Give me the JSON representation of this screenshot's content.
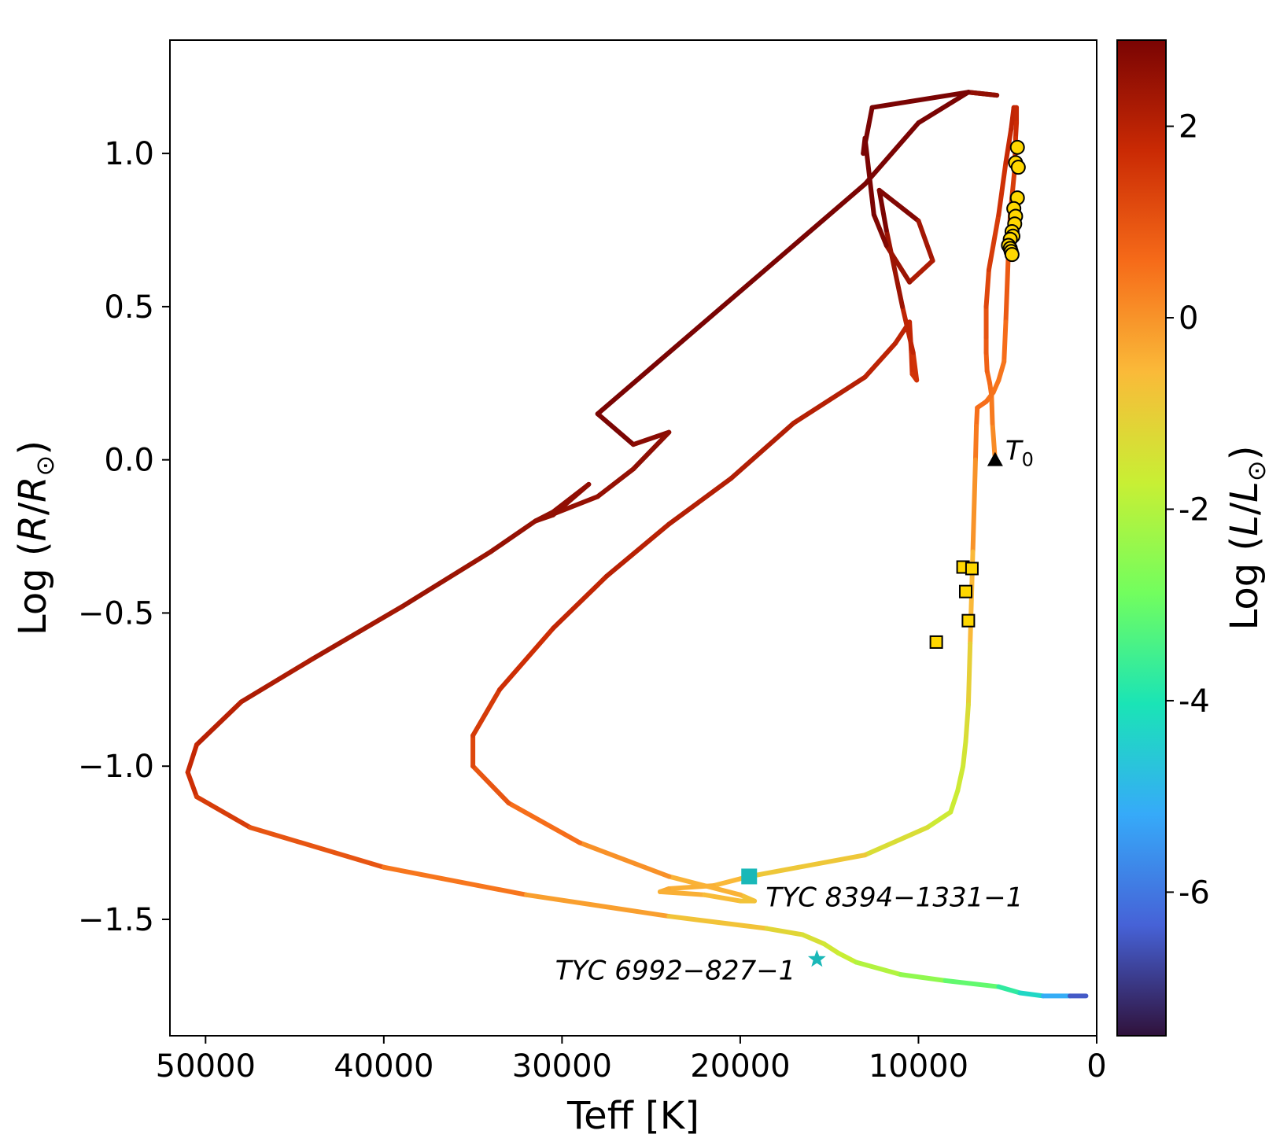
{
  "chart_data": {
    "type": "scatter",
    "xlabel": "Teff [K]",
    "ylabel": "Log (R/R⊙)",
    "colorbar_label": "Log (L/L⊙)",
    "xlim": [
      52000,
      0
    ],
    "ylim": [
      -1.88,
      1.37
    ],
    "clim": [
      -7.5,
      2.9
    ],
    "x_ticks": [
      50000,
      40000,
      30000,
      20000,
      10000,
      0
    ],
    "x_tick_labels": [
      "50000",
      "40000",
      "30000",
      "20000",
      "10000",
      "0"
    ],
    "y_ticks": [
      1.0,
      0.5,
      0.0,
      -0.5,
      -1.0,
      -1.5
    ],
    "y_tick_labels": [
      "1.0",
      "0.5",
      "0.0",
      "−0.5",
      "−1.0",
      "−1.5"
    ],
    "colorbar_ticks": [
      2,
      0,
      -2,
      -4,
      -6
    ],
    "colorbar_tick_labels": [
      "2",
      "0",
      "-2",
      "-4",
      "-6"
    ],
    "track": [
      [
        5700,
        0.0
      ],
      [
        5850,
        0.12
      ],
      [
        5900,
        0.21
      ],
      [
        6000,
        0.25
      ],
      [
        6150,
        0.29
      ],
      [
        6200,
        0.35
      ],
      [
        6200,
        0.4
      ],
      [
        6200,
        0.5
      ],
      [
        6050,
        0.62
      ],
      [
        5500,
        0.8
      ],
      [
        5100,
        0.97
      ],
      [
        4800,
        1.08
      ],
      [
        4650,
        1.15
      ],
      [
        4500,
        1.15
      ],
      [
        4500,
        1.1
      ],
      [
        4550,
        1.05
      ],
      [
        4600,
        0.95
      ],
      [
        4850,
        0.8
      ],
      [
        4950,
        0.68
      ],
      [
        5100,
        0.45
      ],
      [
        5200,
        0.32
      ],
      [
        5500,
        0.26
      ],
      [
        5800,
        0.22
      ],
      [
        6200,
        0.19
      ],
      [
        6700,
        0.17
      ],
      [
        6750,
        0.11
      ],
      [
        6800,
        0.0
      ],
      [
        6950,
        -0.3
      ],
      [
        7100,
        -0.6
      ],
      [
        7200,
        -0.8
      ],
      [
        7350,
        -0.92
      ],
      [
        7500,
        -1.0
      ],
      [
        7800,
        -1.08
      ],
      [
        8200,
        -1.15
      ],
      [
        9500,
        -1.2
      ],
      [
        13000,
        -1.29
      ],
      [
        19500,
        -1.36
      ],
      [
        21500,
        -1.39
      ],
      [
        24000,
        -1.4
      ],
      [
        24500,
        -1.41
      ],
      [
        22000,
        -1.42
      ],
      [
        20000,
        -1.44
      ],
      [
        19200,
        -1.44
      ],
      [
        20000,
        -1.42
      ],
      [
        24000,
        -1.36
      ],
      [
        29000,
        -1.25
      ],
      [
        33000,
        -1.12
      ],
      [
        35000,
        -1.0
      ],
      [
        35000,
        -0.9
      ],
      [
        33500,
        -0.75
      ],
      [
        30500,
        -0.55
      ],
      [
        27500,
        -0.38
      ],
      [
        24000,
        -0.21
      ],
      [
        20500,
        -0.06
      ],
      [
        17000,
        0.12
      ],
      [
        13000,
        0.27
      ],
      [
        11300,
        0.38
      ],
      [
        10500,
        0.45
      ],
      [
        10400,
        0.35
      ],
      [
        10350,
        0.28
      ],
      [
        10100,
        0.26
      ],
      [
        10300,
        0.35
      ],
      [
        10900,
        0.5
      ],
      [
        11800,
        0.75
      ],
      [
        12200,
        0.88
      ],
      [
        10000,
        0.78
      ],
      [
        9200,
        0.65
      ],
      [
        10500,
        0.58
      ],
      [
        11800,
        0.7
      ],
      [
        12500,
        0.8
      ],
      [
        13000,
        1.05
      ],
      [
        13100,
        1.0
      ],
      [
        12600,
        1.15
      ],
      [
        7200,
        1.2
      ],
      [
        5600,
        1.19
      ],
      [
        7200,
        1.2
      ],
      [
        10000,
        1.1
      ],
      [
        13000,
        0.9
      ],
      [
        17000,
        0.7
      ],
      [
        21000,
        0.5
      ],
      [
        25000,
        0.3
      ],
      [
        28000,
        0.15
      ],
      [
        26000,
        0.05
      ],
      [
        24000,
        0.09
      ],
      [
        26000,
        -0.03
      ],
      [
        28000,
        -0.12
      ],
      [
        31500,
        -0.2
      ],
      [
        30500,
        -0.18
      ],
      [
        28500,
        -0.08
      ],
      [
        30500,
        -0.17
      ],
      [
        31500,
        -0.2
      ],
      [
        34000,
        -0.3
      ],
      [
        39000,
        -0.48
      ],
      [
        44000,
        -0.65
      ],
      [
        48000,
        -0.79
      ],
      [
        50500,
        -0.93
      ],
      [
        51000,
        -1.02
      ],
      [
        50500,
        -1.1
      ],
      [
        47500,
        -1.2
      ],
      [
        40000,
        -1.33
      ],
      [
        32000,
        -1.42
      ],
      [
        24000,
        -1.49
      ],
      [
        18500,
        -1.53
      ],
      [
        16500,
        -1.55
      ],
      [
        15300,
        -1.58
      ],
      [
        14500,
        -1.61
      ],
      [
        13500,
        -1.64
      ],
      [
        11000,
        -1.68
      ],
      [
        8500,
        -1.7
      ],
      [
        5500,
        -1.72
      ],
      [
        4300,
        -1.74
      ],
      [
        3000,
        -1.75
      ],
      [
        1500,
        -1.75
      ],
      [
        600,
        -1.75
      ]
    ],
    "circles": [
      [
        4450,
        1.02
      ],
      [
        4550,
        0.97
      ],
      [
        4400,
        0.955
      ],
      [
        4450,
        0.855
      ],
      [
        4650,
        0.82
      ],
      [
        4550,
        0.795
      ],
      [
        4600,
        0.77
      ],
      [
        4750,
        0.745
      ],
      [
        4700,
        0.73
      ],
      [
        4850,
        0.72
      ],
      [
        4950,
        0.7
      ],
      [
        4850,
        0.69
      ],
      [
        4800,
        0.68
      ],
      [
        4750,
        0.67
      ]
    ],
    "squares": [
      [
        7500,
        -0.35
      ],
      [
        7000,
        -0.355
      ],
      [
        7350,
        -0.43
      ],
      [
        7200,
        -0.525
      ],
      [
        9000,
        -0.595
      ]
    ],
    "triangle": [
      5700,
      0.0
    ],
    "triangle_label": "T",
    "triangle_label_sub": "0",
    "target_square": [
      19500,
      -1.36
    ],
    "target_square_label": "TYC 8394−1331−1",
    "target_star": [
      15700,
      -1.63
    ],
    "target_star_label": "TYC 6992−827−1",
    "colors": {
      "marker_fill": "#ffd700",
      "target": "#1ab8b8",
      "colormap": [
        "#30123b",
        "#4662d7",
        "#36aaf9",
        "#1ae4b6",
        "#72fe5e",
        "#c8ef34",
        "#faba39",
        "#f66b19",
        "#ca2a04",
        "#7a0403"
      ]
    }
  }
}
